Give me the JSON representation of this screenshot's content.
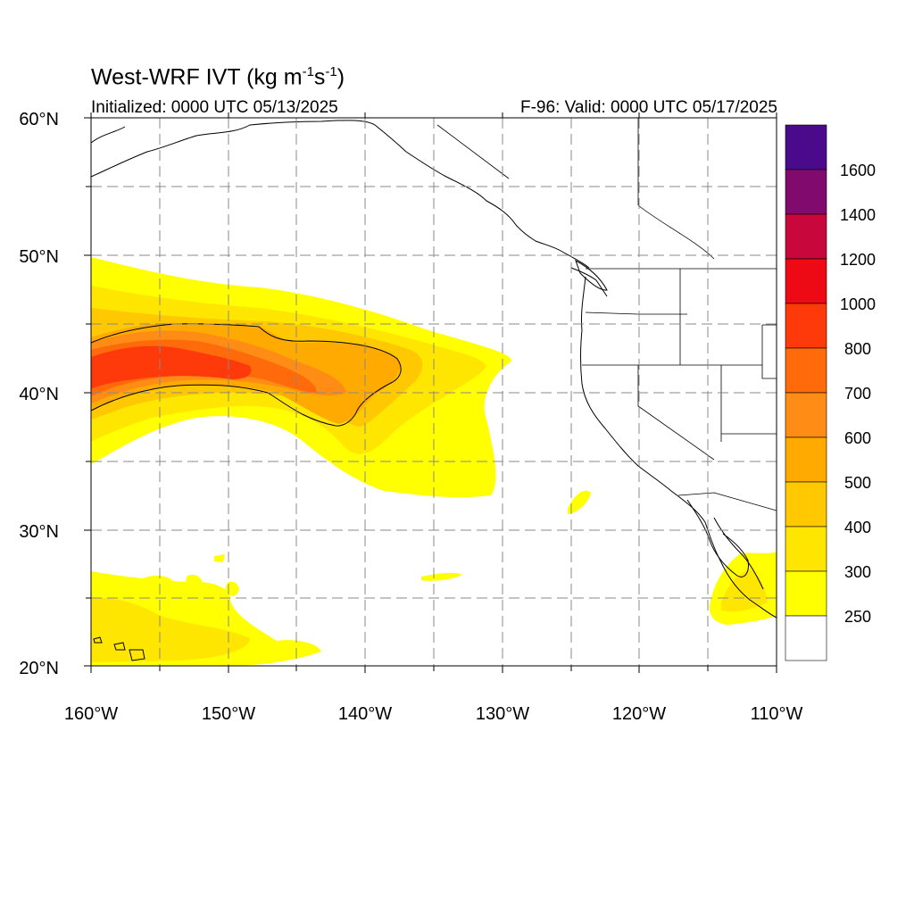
{
  "map": {
    "title_main": "West-WRF IVT (kg m",
    "title_exp1": "-1",
    "title_mid": "s",
    "title_exp2": "-1",
    "title_end": ")",
    "initialized": "Initialized: 0000 UTC 05/13/2025",
    "valid": "F-96: Valid: 0000 UTC 05/17/2025",
    "lat_labels": [
      "60°N",
      "50°N",
      "40°N",
      "30°N",
      "20°N"
    ],
    "lon_labels": [
      "160°W",
      "150°W",
      "140°W",
      "130°W",
      "120°W",
      "110°W"
    ],
    "extent": {
      "lon_min": -160,
      "lon_max": -110,
      "lat_min": 20,
      "lat_max": 60
    }
  },
  "colorbar": {
    "labels": [
      "1600",
      "1400",
      "1200",
      "1000",
      "800",
      "700",
      "600",
      "500",
      "400",
      "300",
      "250"
    ],
    "colors": [
      "#4b0a8c",
      "#800a6e",
      "#c8083c",
      "#ee0a14",
      "#ff3a0a",
      "#ff6a0a",
      "#ff8c14",
      "#ffaa00",
      "#ffc800",
      "#ffe600",
      "#ffff00",
      "#ffffff"
    ]
  },
  "ivt_levels": {
    "250": "#ffff00",
    "300": "#ffe600",
    "400": "#ffc800",
    "500": "#ffaa00",
    "600": "#ff8c14",
    "700": "#ff6a0a",
    "800": "#ff3a0a"
  }
}
